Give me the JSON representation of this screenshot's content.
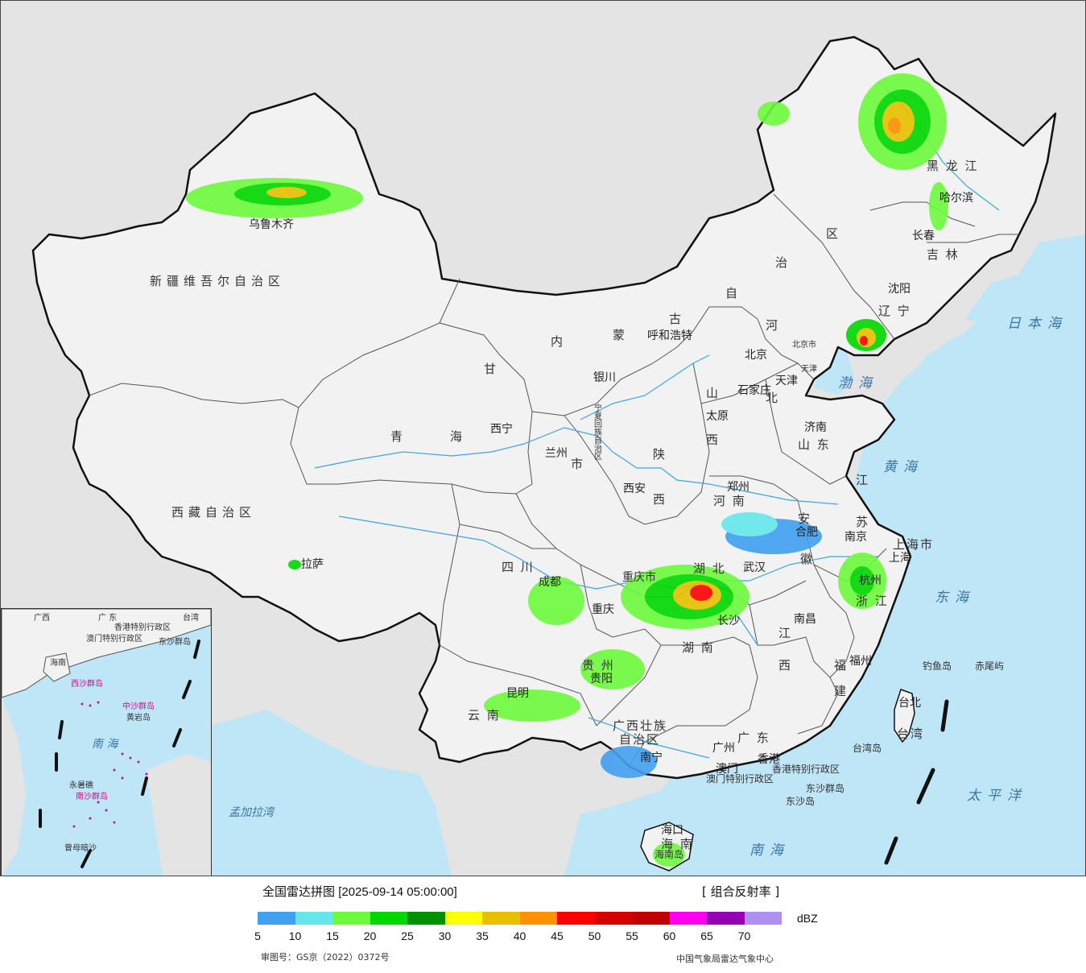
{
  "map": {
    "title_text": "全国雷达拼图",
    "timestamp": "[2025-09-14 05:00:00]",
    "product": "[ 组合反射率 ]",
    "regions": {
      "xinjiang": "新疆维吾尔自治区",
      "xizang": "西藏自治区",
      "qinghai_a": "青",
      "qinghai_b": "海",
      "gansu": "甘",
      "neimenggu_nei": "内",
      "neimenggu_meng": "蒙",
      "neimenggu_gu": "古",
      "neimenggu_zi": "自",
      "neimenggu_zhi": "治",
      "neimenggu_qu": "区",
      "heilongjiang": "黑 龙 江",
      "jilin": "吉 林",
      "liaoning": "辽 宁",
      "hebei_he": "河",
      "hebei_bei": "北",
      "shanxi_shan": "山",
      "shanxi_xi": "西",
      "shaanxi_shan": "陕",
      "shaanxi_xi": "西",
      "henan": "河 南",
      "shandong": "山 东",
      "jiangsu_jiang": "江",
      "jiangsu_su": "苏",
      "anhui_an": "安",
      "anhui_hui": "徽",
      "shanghai": "上海市",
      "zhejiang": "浙 江",
      "hubei": "湖 北",
      "hunan": "湖 南",
      "jiangxi_jiang": "江",
      "jiangxi_xi": "西",
      "fujian_fu": "福",
      "fujian_jian": "建",
      "sichuan": "四 川",
      "chongqing": "重庆市",
      "guizhou": "贵 州",
      "yunnan": "云 南",
      "guangxi_1": "广西壮族",
      "guangxi_2": "自治区",
      "guangdong": "广 东",
      "hainan": "海 南",
      "taiwan": "台湾",
      "ningxia": "宁夏回族自治区",
      "tianjin": "天津",
      "beijing_city": "北京市",
      "hk": "香港特别行政区",
      "macau": "澳门特别行政区",
      "gansu_shi": "市"
    },
    "cities": {
      "urumqi": "乌鲁木齐",
      "lhasa": "拉萨",
      "xining": "西宁",
      "lanzhou": "兰州",
      "yinchuan": "银川",
      "hohhot": "呼和浩特",
      "beijing": "北京",
      "tianjin": "天津",
      "shijiazhuang": "石家庄",
      "taiyuan": "太原",
      "jinan": "济南",
      "zhengzhou": "郑州",
      "xian": "西安",
      "chengdu": "成都",
      "chongqing": "重庆",
      "guiyang": "贵阳",
      "kunming": "昆明",
      "nanning": "南宁",
      "guangzhou": "广州",
      "hongkong": "香港",
      "macao": "澳门",
      "haikou": "海口",
      "wuhan": "武汉",
      "changsha": "长沙",
      "nanchang": "南昌",
      "hefei": "合肥",
      "nanjing": "南京",
      "shanghai": "上海",
      "hangzhou": "杭州",
      "fuzhou": "福州",
      "taipei": "台北",
      "shenyang": "沈阳",
      "changchun": "长春",
      "harbin": "哈尔滨"
    },
    "seas": {
      "japan_sea": "日本海",
      "bohai": "渤海",
      "yellow_sea": "黄海",
      "east_sea": "东海",
      "pacific": "太平洋",
      "south_sea": "南海",
      "bengal": "孟加拉湾"
    },
    "islands": {
      "diaoyu": "钓鱼岛",
      "chiwei": "赤尾屿",
      "taiwan_island": "台湾岛",
      "dongsha_qundao": "东沙群岛",
      "dongsha_dao": "东沙岛",
      "hainan_island": "海南岛"
    },
    "inset": {
      "guangdong": "广 东",
      "guangxi": "广西",
      "taiwan": "台湾",
      "hk": "香港特别行政区",
      "macau": "澳门特别行政区",
      "dongsha": "东沙群岛",
      "xisha": "西沙群岛",
      "zhongsha": "中沙群岛",
      "huangyan": "黄岩岛",
      "nanhai": "南 海",
      "nansha": "南沙群岛",
      "yongshu": "永暑礁",
      "zengmu": "曾母暗沙",
      "hainan": "海南"
    },
    "colors": {
      "sea": "#bfe6f6",
      "land_china": "#f2f2f2",
      "land_foreign": "#e4e4e4",
      "border": "#111111",
      "river": "#3aa7e0"
    }
  },
  "legend": {
    "unit": "dBZ",
    "swatches": [
      "#41a0f0",
      "#64e7eb",
      "#6dfa3d",
      "#00d800",
      "#019000",
      "#ffff00",
      "#e7c000",
      "#ff9000",
      "#ff0000",
      "#d60000",
      "#c00000",
      "#ff00f0",
      "#9600b4",
      "#ad90f0"
    ],
    "ticks": [
      "5",
      "10",
      "15",
      "20",
      "25",
      "30",
      "35",
      "40",
      "45",
      "50",
      "55",
      "60",
      "65",
      "70"
    ],
    "approval": "审图号：GS京（2022）0372号",
    "credit": "中国气象局雷达气象中心"
  }
}
